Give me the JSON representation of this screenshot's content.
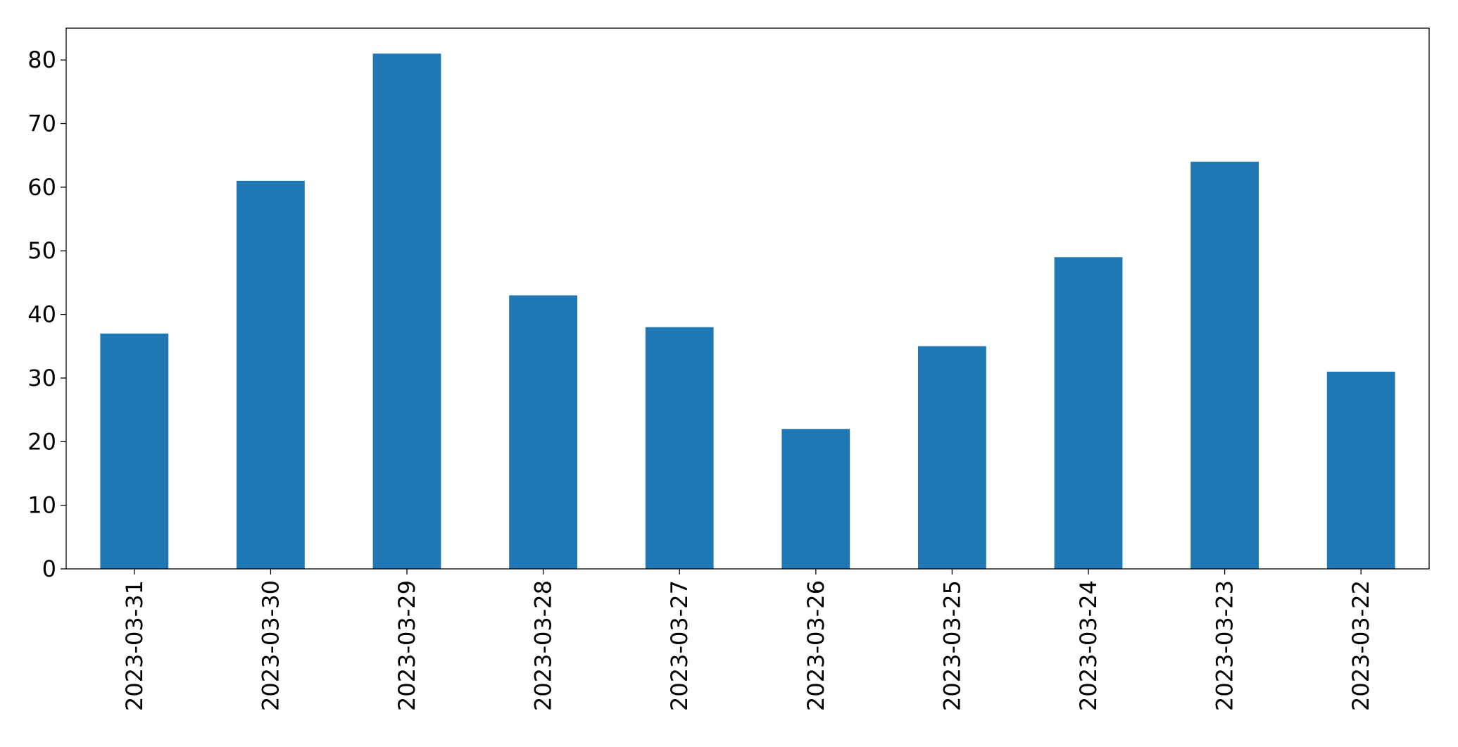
{
  "chart_data": {
    "type": "bar",
    "categories": [
      "2023-03-31",
      "2023-03-30",
      "2023-03-29",
      "2023-03-28",
      "2023-03-27",
      "2023-03-26",
      "2023-03-25",
      "2023-03-24",
      "2023-03-23",
      "2023-03-22"
    ],
    "values": [
      37,
      61,
      81,
      43,
      38,
      22,
      35,
      49,
      64,
      31
    ],
    "color": "#1f77b4",
    "ylim": [
      0,
      85
    ],
    "yticks": [
      0,
      10,
      20,
      30,
      40,
      50,
      60,
      70,
      80
    ],
    "grid": false
  }
}
